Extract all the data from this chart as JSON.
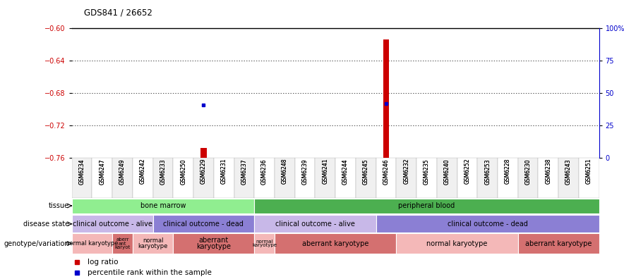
{
  "title": "GDS841 / 26652",
  "samples": [
    "GSM6234",
    "GSM6247",
    "GSM6249",
    "GSM6242",
    "GSM6233",
    "GSM6250",
    "GSM6229",
    "GSM6231",
    "GSM6237",
    "GSM6236",
    "GSM6248",
    "GSM6239",
    "GSM6241",
    "GSM6244",
    "GSM6245",
    "GSM6246",
    "GSM6232",
    "GSM6235",
    "GSM6240",
    "GSM6252",
    "GSM6253",
    "GSM6228",
    "GSM6230",
    "GSM6238",
    "GSM6243",
    "GSM6251"
  ],
  "log_ratio": [
    null,
    null,
    null,
    null,
    null,
    null,
    -0.748,
    null,
    null,
    null,
    null,
    null,
    null,
    null,
    null,
    -0.614,
    null,
    null,
    null,
    null,
    null,
    null,
    null,
    null,
    null,
    null
  ],
  "percentile_left_val": [
    null,
    null,
    null,
    null,
    null,
    null,
    -0.695,
    null,
    null,
    null,
    null,
    null,
    null,
    null,
    null,
    -0.693,
    null,
    null,
    null,
    null,
    null,
    null,
    null,
    null,
    null,
    null
  ],
  "ylim_left": [
    -0.76,
    -0.6
  ],
  "ylim_right": [
    0,
    100
  ],
  "yticks_left": [
    -0.76,
    -0.72,
    -0.68,
    -0.64,
    -0.6
  ],
  "yticks_right": [
    0,
    25,
    50,
    75,
    100
  ],
  "ytick_labels_right": [
    "0",
    "25",
    "50",
    "75",
    "100%"
  ],
  "tissue_groups": [
    {
      "label": "bone marrow",
      "start": 0,
      "end": 9,
      "color": "#90EE90"
    },
    {
      "label": "peripheral blood",
      "start": 9,
      "end": 26,
      "color": "#4CAF50"
    }
  ],
  "disease_groups": [
    {
      "label": "clinical outcome - alive",
      "start": 0,
      "end": 4,
      "color": "#C8B8E8"
    },
    {
      "label": "clinical outcome - dead",
      "start": 4,
      "end": 9,
      "color": "#8B7FD4"
    },
    {
      "label": "clinical outcome - alive",
      "start": 9,
      "end": 15,
      "color": "#C8B8E8"
    },
    {
      "label": "clinical outcome - dead",
      "start": 15,
      "end": 26,
      "color": "#8B7FD4"
    }
  ],
  "geno_groups": [
    {
      "label": "normal karyotype",
      "start": 0,
      "end": 2,
      "color": "#F4B8B8",
      "fontsize": 6
    },
    {
      "label": "aberr\nant\nkaryot",
      "start": 2,
      "end": 3,
      "color": "#D47070",
      "fontsize": 5
    },
    {
      "label": "normal\nkaryotype",
      "start": 3,
      "end": 5,
      "color": "#F4B8B8",
      "fontsize": 6
    },
    {
      "label": "aberrant\nkaryotype",
      "start": 5,
      "end": 9,
      "color": "#D47070",
      "fontsize": 7
    },
    {
      "label": "normal\nkaryotype",
      "start": 9,
      "end": 10,
      "color": "#F4B8B8",
      "fontsize": 5
    },
    {
      "label": "aberrant karyotype",
      "start": 10,
      "end": 16,
      "color": "#D47070",
      "fontsize": 7
    },
    {
      "label": "normal karyotype",
      "start": 16,
      "end": 22,
      "color": "#F4B8B8",
      "fontsize": 7
    },
    {
      "label": "aberrant karyotype",
      "start": 22,
      "end": 26,
      "color": "#D47070",
      "fontsize": 7
    }
  ],
  "bar_color": "#CC0000",
  "dot_color": "#0000CC",
  "tick_label_color_left": "#CC0000",
  "tick_label_color_right": "#0000CC"
}
